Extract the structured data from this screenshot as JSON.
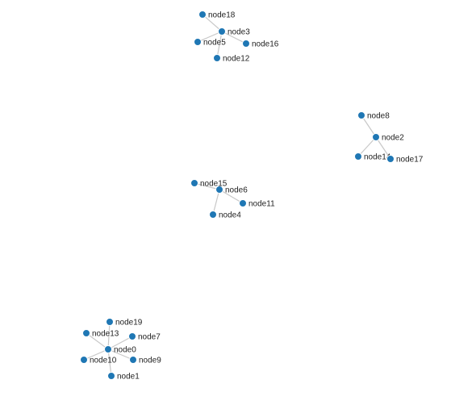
{
  "graph": {
    "node_color": "#1f77b4",
    "edge_color": "#c8c8c8",
    "nodes": [
      {
        "id": "node0",
        "label": "node0"
      },
      {
        "id": "node1",
        "label": "node1"
      },
      {
        "id": "node2",
        "label": "node2"
      },
      {
        "id": "node3",
        "label": "node3"
      },
      {
        "id": "node4",
        "label": "node4"
      },
      {
        "id": "node5",
        "label": "node5"
      },
      {
        "id": "node6",
        "label": "node6"
      },
      {
        "id": "node7",
        "label": "node7"
      },
      {
        "id": "node8",
        "label": "node8"
      },
      {
        "id": "node9",
        "label": "node9"
      },
      {
        "id": "node10",
        "label": "node10"
      },
      {
        "id": "node11",
        "label": "node11"
      },
      {
        "id": "node12",
        "label": "node12"
      },
      {
        "id": "node13",
        "label": "node13"
      },
      {
        "id": "node14",
        "label": "node14"
      },
      {
        "id": "node15",
        "label": "node15"
      },
      {
        "id": "node16",
        "label": "node16"
      },
      {
        "id": "node17",
        "label": "node17"
      },
      {
        "id": "node18",
        "label": "node18"
      },
      {
        "id": "node19",
        "label": "node19"
      }
    ],
    "edges": [
      {
        "source": "node3",
        "target": "node18"
      },
      {
        "source": "node3",
        "target": "node5"
      },
      {
        "source": "node3",
        "target": "node16"
      },
      {
        "source": "node3",
        "target": "node12"
      },
      {
        "source": "node2",
        "target": "node8"
      },
      {
        "source": "node2",
        "target": "node14"
      },
      {
        "source": "node2",
        "target": "node17"
      },
      {
        "source": "node6",
        "target": "node15"
      },
      {
        "source": "node6",
        "target": "node11"
      },
      {
        "source": "node6",
        "target": "node4"
      },
      {
        "source": "node0",
        "target": "node19"
      },
      {
        "source": "node0",
        "target": "node13"
      },
      {
        "source": "node0",
        "target": "node7"
      },
      {
        "source": "node0",
        "target": "node10"
      },
      {
        "source": "node0",
        "target": "node9"
      },
      {
        "source": "node0",
        "target": "node1"
      }
    ]
  }
}
